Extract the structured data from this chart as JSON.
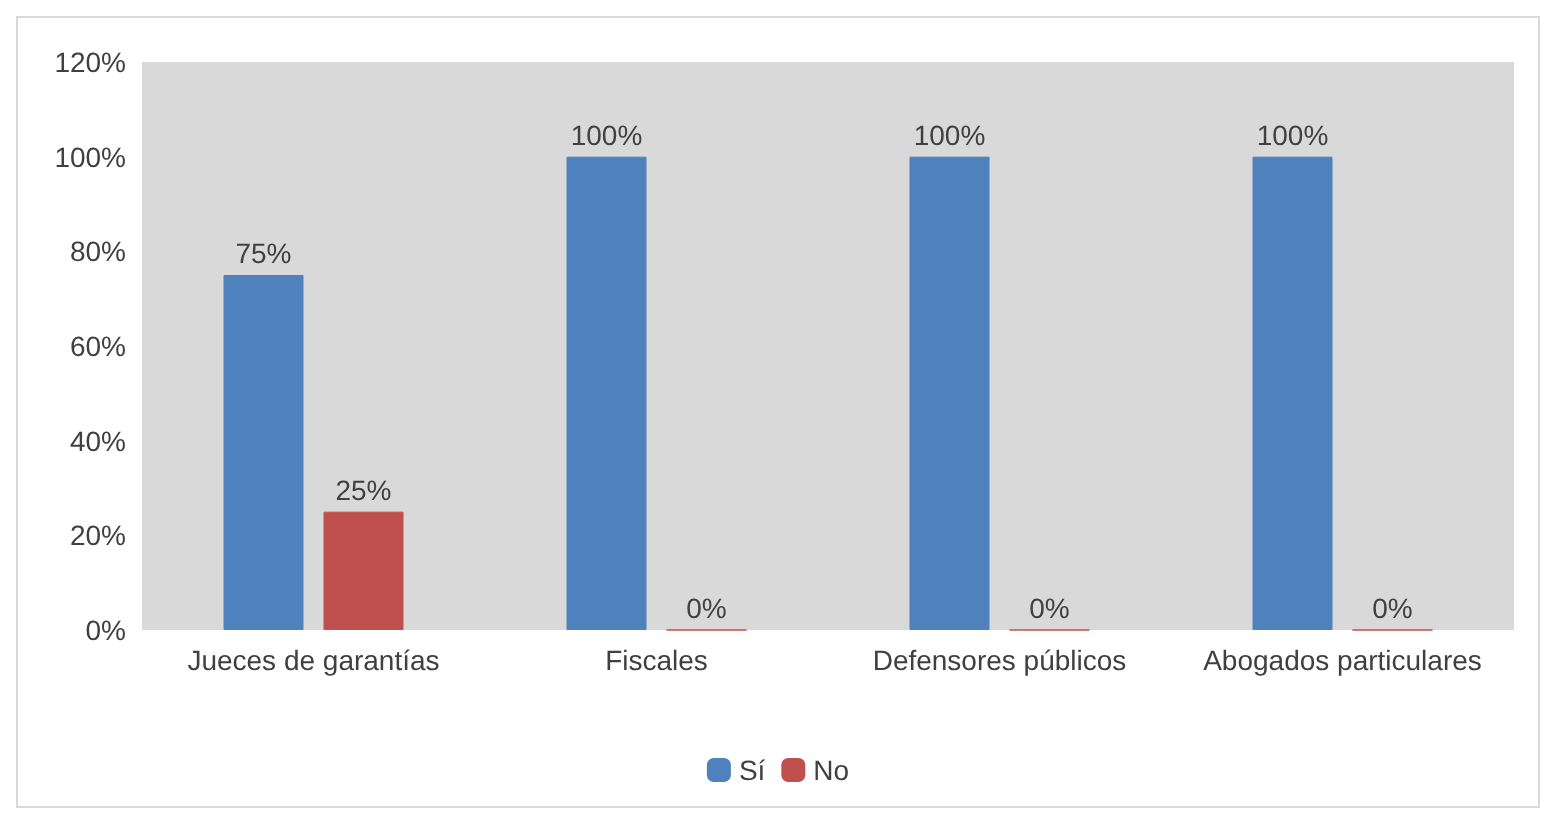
{
  "chart_data": {
    "type": "bar",
    "categories": [
      "Jueces de garantías",
      "Fiscales",
      "Defensores públicos",
      "Abogados particulares"
    ],
    "series": [
      {
        "name": "Sí",
        "color": "#4f81bd",
        "values": [
          75,
          100,
          100,
          100
        ],
        "value_labels": [
          "75%",
          "100%",
          "100%",
          "100%"
        ]
      },
      {
        "name": "No",
        "color": "#c0504d",
        "values": [
          25,
          0,
          0,
          0
        ],
        "value_labels": [
          "25%",
          "0%",
          "0%",
          "0%"
        ]
      }
    ],
    "ylim": [
      0,
      120
    ],
    "yticks": [
      {
        "value": 0,
        "label": "0%"
      },
      {
        "value": 20,
        "label": "20%"
      },
      {
        "value": 40,
        "label": "40%"
      },
      {
        "value": 60,
        "label": "60%"
      },
      {
        "value": 80,
        "label": "80%"
      },
      {
        "value": 100,
        "label": "100%"
      },
      {
        "value": 120,
        "label": "120%"
      }
    ],
    "grid": false,
    "legend": "bottom"
  }
}
